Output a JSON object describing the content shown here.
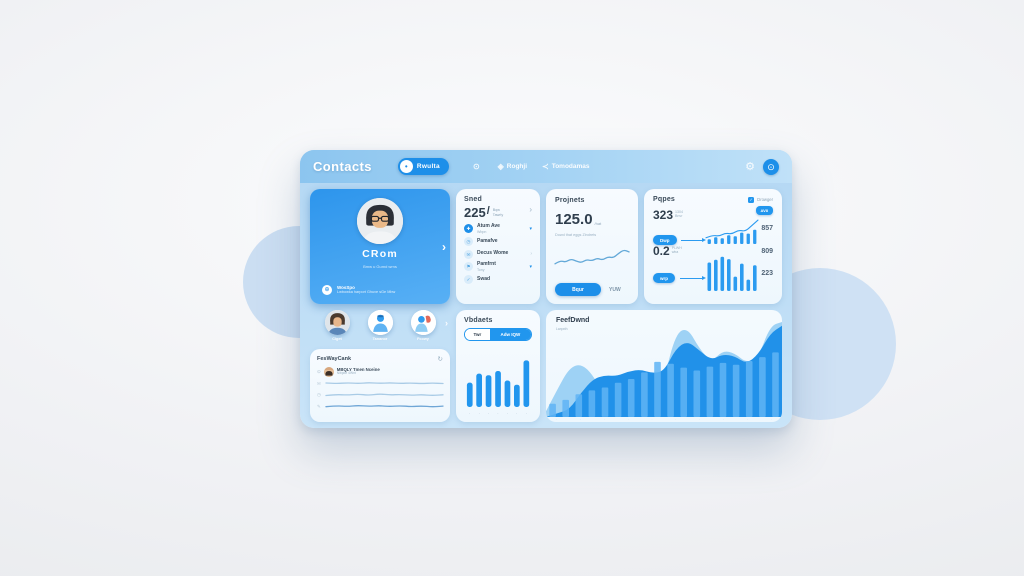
{
  "header": {
    "title": "Contacts",
    "toggle": {
      "glyph": "•",
      "label": "Rwulta"
    },
    "nav": [
      {
        "glyph": "⊙",
        "label": ""
      },
      {
        "glyph": "◈",
        "label": "Roghji"
      },
      {
        "glyph": "≺",
        "label": "Tomodamas"
      }
    ],
    "gear_glyph": "⚙",
    "avatar_glyph": "⊙"
  },
  "profile_card": {
    "name": "CRom",
    "subtitle": "Bmw u Gumd wrns",
    "detail_icon_glyph": "⊕",
    "detail_label": "WosSpo",
    "detail_sub": "Lwbowka harport Ghuve sGe Mbw",
    "chevron": "›"
  },
  "stats_card": {
    "title": "Sned",
    "value": "225",
    "slash": "/",
    "unit_top": "Bqw",
    "unit_bottom": "Tawrly",
    "chevron": "›",
    "items": [
      {
        "glyph": "✚",
        "label": "Atum Ave",
        "sub": "Wbpn",
        "trail": "▾"
      },
      {
        "glyph": "◷",
        "label": "Pamafve",
        "sub": "",
        "trail": ""
      },
      {
        "glyph": "✉",
        "label": "Decus Wome",
        "sub": "",
        "trail": "›"
      },
      {
        "glyph": "⚑",
        "label": "Pamfrnt",
        "sub": "Tony",
        "trail": "▾"
      },
      {
        "glyph": "✓",
        "label": "Swad",
        "sub": "",
        "trail": ""
      }
    ]
  },
  "projects_card": {
    "title": "Projnets",
    "value": "125.0",
    "suffix": "/hat",
    "caption": "Dowd that eggs Zindrets",
    "primary_button": "Bqur",
    "secondary_button": "YUW"
  },
  "pages_card": {
    "title": "Pqpes",
    "legend_check": "✓",
    "legend_label": "Drowger",
    "metric1": {
      "value": "323",
      "sub_top": "1304",
      "sub_bottom": "Bnvr",
      "pill": "Dwp"
    },
    "metric2": {
      "value": "0.2",
      "sub_top": "PLWH",
      "sub_bottom": "wba",
      "pill": "wrp"
    },
    "badge": "AV8",
    "side_values": [
      "857",
      "809",
      "223"
    ]
  },
  "team_row": {
    "chevron": "›",
    "members": [
      {
        "label": "Clget"
      },
      {
        "label": "Tananor"
      },
      {
        "label": "Fcowy"
      }
    ]
  },
  "feed_card": {
    "title": "FesWayCank",
    "refresh_glyph": "↻",
    "member_icon_glyph": "⊙",
    "member_name": "MBQLY Tmen Nceine",
    "member_sub": "Nibpde 4Wnt",
    "rows": [
      {
        "glyph": "✉"
      },
      {
        "glyph": "◷"
      },
      {
        "glyph": "✎"
      }
    ]
  },
  "widgets_card": {
    "title": "Vbdaets",
    "segment_active": "Twr",
    "segment_inactive": "Adw IQW",
    "ticks": [
      "·",
      "·",
      "·",
      "·",
      "·",
      "·",
      "·"
    ]
  },
  "trend_card": {
    "title": "FeefDwnd",
    "subtitle": "Lwqwth",
    "ticks": [
      "·",
      "·",
      "·",
      "·",
      "·",
      "·",
      "·",
      "·",
      "·",
      "·"
    ]
  },
  "colors": {
    "primary": "#1d8fe9",
    "panel_light": "#c9e4f8",
    "card_white": "#f6fbff",
    "trend_front_area": "#2191e9",
    "trend_back_area": "#9ed2f5"
  },
  "chart_data": [
    {
      "id": "projects_spark",
      "type": "line",
      "values": [
        34,
        46,
        40,
        52,
        44,
        38,
        50,
        45,
        55,
        48,
        60,
        56,
        72,
        86,
        78
      ],
      "color": "#64a9d8",
      "title": "projects sparkline"
    },
    {
      "id": "pages_mini1",
      "type": "bar-line",
      "bar_values": [
        18,
        26,
        22,
        34,
        30,
        44,
        40,
        55
      ],
      "line_values": [
        24,
        34,
        30,
        42,
        38,
        54,
        48,
        70,
        92
      ],
      "color": "#2b9bf0",
      "line_color": "#2b9bf0"
    },
    {
      "id": "pages_mini2",
      "type": "bar",
      "values": [
        75,
        82,
        90,
        84,
        38,
        72,
        30,
        68
      ],
      "color": "#2b9bf0"
    },
    {
      "id": "widgets_bars",
      "type": "bar",
      "values": [
        46,
        63,
        60,
        68,
        50,
        42,
        88
      ],
      "color": "#2196ee",
      "rx": 2.5,
      "bar_frac": 0.6
    },
    {
      "id": "trend_main",
      "type": "layered",
      "back_area": [
        6,
        30,
        52,
        56,
        44,
        20,
        14,
        26,
        30,
        27,
        40,
        88,
        94,
        72,
        58,
        70,
        67,
        57,
        63,
        96,
        100
      ],
      "front_area": [
        0,
        4,
        8,
        26,
        40,
        44,
        43,
        48,
        50,
        46,
        48,
        72,
        80,
        70,
        60,
        66,
        64,
        56,
        66,
        88,
        96
      ],
      "bars": [
        14,
        18,
        24,
        28,
        31,
        36,
        40,
        47,
        58,
        56,
        52,
        49,
        53,
        57,
        55,
        59,
        63,
        68
      ],
      "back_color": "#9ed2f5",
      "front_color": "#2191e9",
      "bar_color": "rgba(95,180,245,0.85)"
    },
    {
      "id": "feed_wave_1",
      "type": "line",
      "values": [
        55,
        48,
        58,
        50,
        60,
        52,
        58,
        50,
        56,
        49,
        55,
        50
      ],
      "color": "#a9cbe6"
    },
    {
      "id": "feed_wave_2",
      "type": "line",
      "values": [
        50,
        62,
        54,
        66,
        52,
        68,
        56,
        62,
        52,
        60,
        50,
        58
      ],
      "color": "#a9cbe6"
    },
    {
      "id": "feed_wave_3",
      "type": "line",
      "values": [
        48,
        58,
        50,
        62,
        52,
        60,
        50,
        58,
        48,
        56,
        46,
        54
      ],
      "color": "#6fa6d6"
    }
  ]
}
